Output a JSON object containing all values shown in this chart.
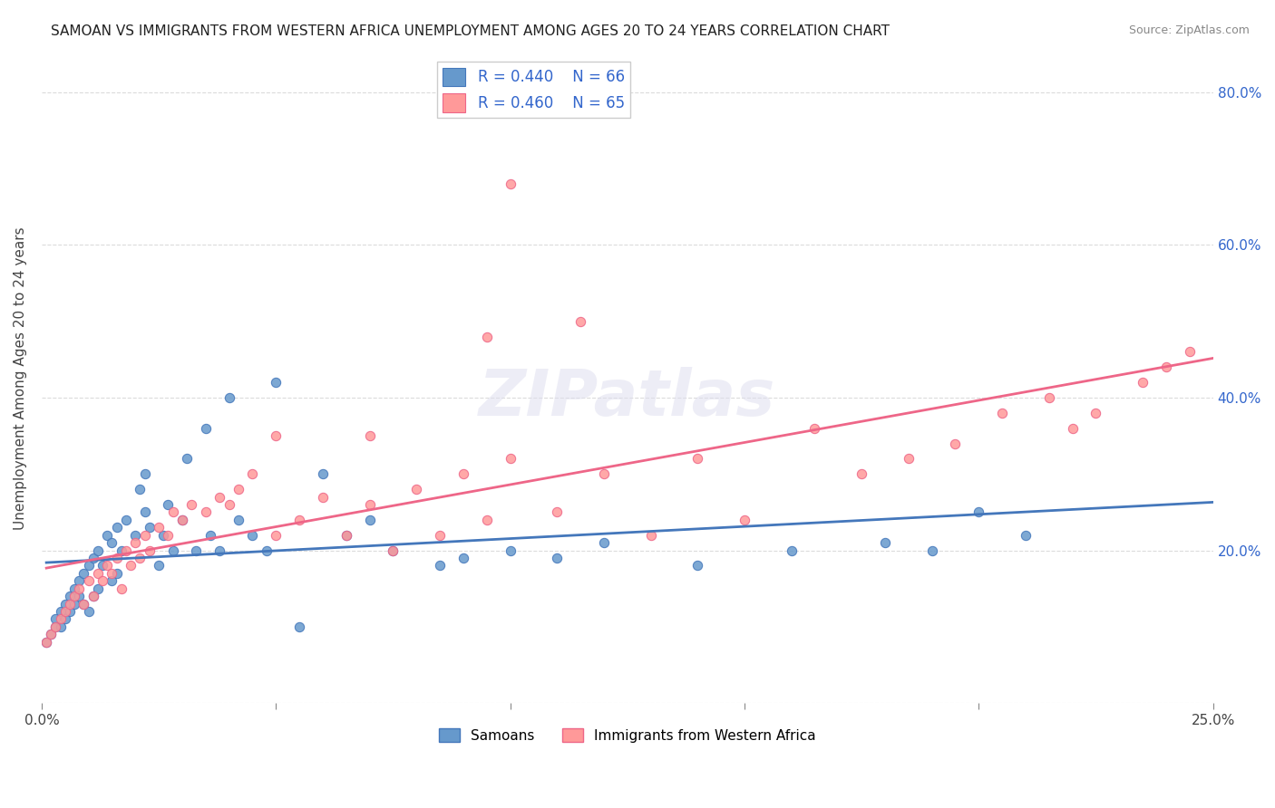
{
  "title": "SAMOAN VS IMMIGRANTS FROM WESTERN AFRICA UNEMPLOYMENT AMONG AGES 20 TO 24 YEARS CORRELATION CHART",
  "source": "Source: ZipAtlas.com",
  "ylabel": "Unemployment Among Ages 20 to 24 years",
  "right_yticks": [
    "80.0%",
    "60.0%",
    "40.0%",
    "20.0%"
  ],
  "right_ytick_vals": [
    0.8,
    0.6,
    0.4,
    0.2
  ],
  "legend_label1": "Samoans",
  "legend_label2": "Immigrants from Western Africa",
  "R1": "0.440",
  "N1": "66",
  "R2": "0.460",
  "N2": "65",
  "color_blue": "#6699CC",
  "color_pink": "#FF9999",
  "color_blue_text": "#3366CC",
  "line_blue": "#4477BB",
  "line_pink": "#EE6688",
  "watermark": "ZIPatlas",
  "xlim": [
    0.0,
    0.25
  ],
  "ylim": [
    0.0,
    0.85
  ],
  "blue_scatter_x": [
    0.001,
    0.002,
    0.003,
    0.003,
    0.004,
    0.004,
    0.005,
    0.005,
    0.006,
    0.006,
    0.007,
    0.007,
    0.008,
    0.008,
    0.009,
    0.009,
    0.01,
    0.01,
    0.011,
    0.011,
    0.012,
    0.012,
    0.013,
    0.014,
    0.015,
    0.015,
    0.016,
    0.016,
    0.017,
    0.018,
    0.02,
    0.021,
    0.022,
    0.022,
    0.023,
    0.025,
    0.026,
    0.027,
    0.028,
    0.03,
    0.031,
    0.033,
    0.035,
    0.036,
    0.038,
    0.04,
    0.042,
    0.045,
    0.048,
    0.05,
    0.055,
    0.06,
    0.065,
    0.07,
    0.075,
    0.085,
    0.09,
    0.1,
    0.11,
    0.12,
    0.14,
    0.16,
    0.18,
    0.19,
    0.2,
    0.21
  ],
  "blue_scatter_y": [
    0.08,
    0.09,
    0.1,
    0.11,
    0.1,
    0.12,
    0.11,
    0.13,
    0.12,
    0.14,
    0.13,
    0.15,
    0.14,
    0.16,
    0.13,
    0.17,
    0.12,
    0.18,
    0.14,
    0.19,
    0.15,
    0.2,
    0.18,
    0.22,
    0.16,
    0.21,
    0.17,
    0.23,
    0.2,
    0.24,
    0.22,
    0.28,
    0.25,
    0.3,
    0.23,
    0.18,
    0.22,
    0.26,
    0.2,
    0.24,
    0.32,
    0.2,
    0.36,
    0.22,
    0.2,
    0.4,
    0.24,
    0.22,
    0.2,
    0.42,
    0.1,
    0.3,
    0.22,
    0.24,
    0.2,
    0.18,
    0.19,
    0.2,
    0.19,
    0.21,
    0.18,
    0.2,
    0.21,
    0.2,
    0.25,
    0.22
  ],
  "pink_scatter_x": [
    0.001,
    0.002,
    0.003,
    0.004,
    0.005,
    0.006,
    0.007,
    0.008,
    0.009,
    0.01,
    0.011,
    0.012,
    0.013,
    0.014,
    0.015,
    0.016,
    0.017,
    0.018,
    0.019,
    0.02,
    0.021,
    0.022,
    0.023,
    0.025,
    0.027,
    0.028,
    0.03,
    0.032,
    0.035,
    0.038,
    0.04,
    0.042,
    0.045,
    0.05,
    0.055,
    0.06,
    0.065,
    0.07,
    0.075,
    0.08,
    0.085,
    0.09,
    0.095,
    0.1,
    0.11,
    0.12,
    0.13,
    0.14,
    0.15,
    0.165,
    0.175,
    0.185,
    0.195,
    0.205,
    0.215,
    0.22,
    0.225,
    0.235,
    0.24,
    0.245,
    0.1,
    0.115,
    0.095,
    0.05,
    0.07
  ],
  "pink_scatter_y": [
    0.08,
    0.09,
    0.1,
    0.11,
    0.12,
    0.13,
    0.14,
    0.15,
    0.13,
    0.16,
    0.14,
    0.17,
    0.16,
    0.18,
    0.17,
    0.19,
    0.15,
    0.2,
    0.18,
    0.21,
    0.19,
    0.22,
    0.2,
    0.23,
    0.22,
    0.25,
    0.24,
    0.26,
    0.25,
    0.27,
    0.26,
    0.28,
    0.3,
    0.22,
    0.24,
    0.27,
    0.22,
    0.26,
    0.2,
    0.28,
    0.22,
    0.3,
    0.24,
    0.32,
    0.25,
    0.3,
    0.22,
    0.32,
    0.24,
    0.36,
    0.3,
    0.32,
    0.34,
    0.38,
    0.4,
    0.36,
    0.38,
    0.42,
    0.44,
    0.46,
    0.68,
    0.5,
    0.48,
    0.35,
    0.35
  ]
}
